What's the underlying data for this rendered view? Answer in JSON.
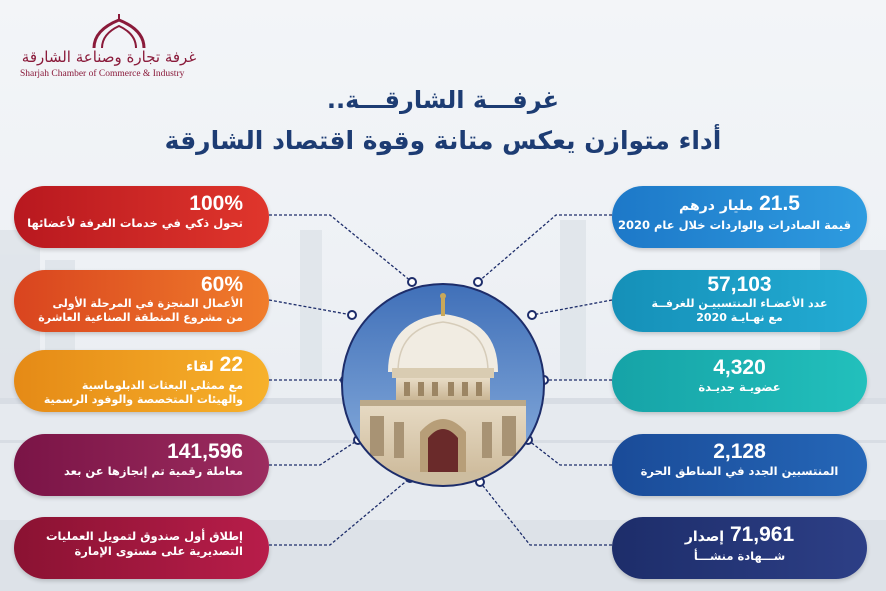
{
  "logo": {
    "arabic_text": "غرفة تجارة وصناعة الشارقة",
    "english_text": "Sharjah Chamber of Commerce & Industry"
  },
  "title": {
    "line1": "غرفـــة الشارقـــة..",
    "line2": "أداء متوازن يعكس متانة وقوة اقتصاد الشارقة"
  },
  "left_stats": [
    {
      "value": "100%",
      "line1": "تحول ذكي في خدمات الغرفة لأعضائها"
    },
    {
      "value": "60%",
      "line1": "الأعمال المنجزة في المرحلة الأولى",
      "line2": "من مشروع المنطقة الصناعية العاشرة"
    },
    {
      "value": "22",
      "unit": "لقاء",
      "line1": "مع ممثلي البعثات الدبلوماسية",
      "line2": "والهيئات المتخصصة والوفود الرسمية"
    },
    {
      "value": "141,596",
      "line1": "معاملة رقمية تم إنجازها عن بعد"
    },
    {
      "line1": "إطلاق أول صندوق لتمويل العمليات",
      "line2": "التصديرية على مستوى الإمارة"
    }
  ],
  "right_stats": [
    {
      "value": "21.5",
      "unit": "مليار درهم",
      "line1": "قيمة الصادرات والواردات خلال عام 2020"
    },
    {
      "value": "57,103",
      "line1": "عدد الأعضـاء المنتسبيـن للغرفــة",
      "line2": "مع نهـايـة 2020"
    },
    {
      "value": "4,320",
      "line1": "عضويـة جديـدة"
    },
    {
      "value": "2,128",
      "line1": "المنتسبين الجدد في المناطق الحرة"
    },
    {
      "value": "71,961",
      "unit": "إصدار",
      "line1": "شـــهادة منشـــأ"
    }
  ],
  "colors": {
    "title": "#1d3c73",
    "logo": "#8a1a3a",
    "connector": "#1d2d6a"
  }
}
